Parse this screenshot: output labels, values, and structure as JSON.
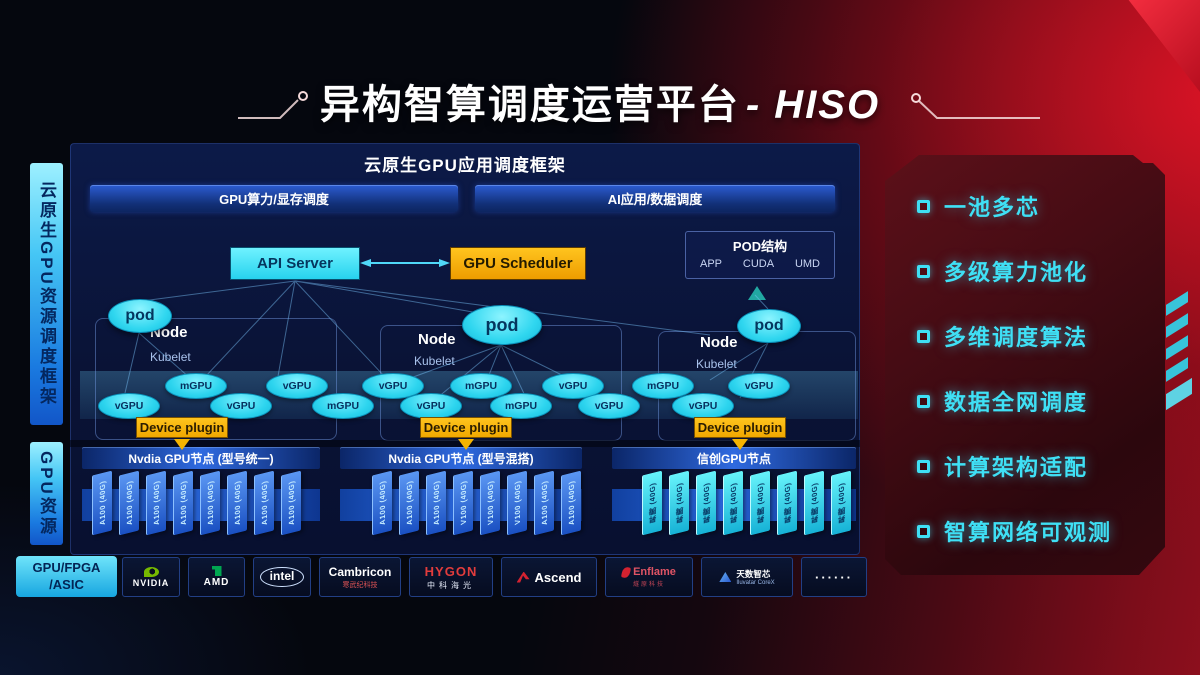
{
  "title": {
    "main": "异构智算调度运营平台",
    "suffix": "- HISO"
  },
  "sidebar": {
    "scheduling_frame": "云原生GPU资源调度框架",
    "gpu_resource": "GPU资源",
    "hardware_line1": "GPU/FPGA",
    "hardware_line2": "/ASIC"
  },
  "main": {
    "header": "云原生GPU应用调度框架",
    "bars": [
      {
        "label": "GPU算力/显存调度"
      },
      {
        "label": "AI应用/数据调度"
      }
    ],
    "api_server": "API Server",
    "gpu_scheduler": "GPU Scheduler",
    "pod_structure": {
      "title": "POD结构",
      "layers": [
        "APP",
        "CUDA",
        "UMD"
      ]
    },
    "pod_label": "pod",
    "clusters": [
      {
        "node": "Node",
        "agent": "Kubelet",
        "plugin": "Device plugin"
      },
      {
        "node": "Node",
        "agent": "Kubelet",
        "plugin": "Device plugin"
      },
      {
        "node": "Node",
        "agent": "Kubelet",
        "plugin": "Device plugin"
      }
    ],
    "gpu_units": [
      "vGPU",
      "mGPU",
      "vGPU",
      "vGPU",
      "mGPU",
      "vGPU",
      "vGPU",
      "mGPU",
      "mGPU",
      "vGPU",
      "vGPU",
      "mGPU",
      "vGPU",
      "vGPU"
    ],
    "node_groups": [
      {
        "label": "Nvdia GPU节点 (型号统一)",
        "style": "blue",
        "cards": [
          "A100 (40G)",
          "A100 (40G)",
          "A100 (40G)",
          "A100 (40G)",
          "A100 (40G)",
          "A100 (40G)",
          "A100 (40G)",
          "A100 (40G)"
        ]
      },
      {
        "label": "Nvdia GPU节点 (型号混搭)",
        "style": "blue",
        "cards": [
          "A100 (40G)",
          "A100 (40G)",
          "A100 (40G)",
          "V100 (40G)",
          "V100 (40G)",
          "V100 (40G)",
          "A100 (40G)",
          "A100 (40G)"
        ]
      },
      {
        "label": "信创GPU节点",
        "style": "cyan",
        "cards": [
          "昇腾 (40G)",
          "昇腾 (40G)",
          "昇腾 (40G)",
          "昇腾 (40G)",
          "昇腾 (40G)",
          "昇腾 (40G)",
          "昇腾 (40G)",
          "昇腾 (40G)"
        ]
      }
    ]
  },
  "vendors": [
    {
      "id": "nvidia",
      "icon": "nvidia-eye-icon",
      "main": "NVIDIA"
    },
    {
      "id": "amd",
      "icon": "amd-arrow-icon",
      "main": "AMD"
    },
    {
      "id": "intel",
      "main": "intel"
    },
    {
      "id": "cambricon",
      "main": "Cambricon",
      "sub": "寒武纪科技"
    },
    {
      "id": "hygon",
      "main": "HYGON",
      "sub": "中科海光"
    },
    {
      "id": "ascend",
      "icon": "ascend-triangle-icon",
      "main": "Ascend"
    },
    {
      "id": "enflame",
      "icon": "enflame-flame-icon",
      "main": "Enflame",
      "sub": "燧原科技"
    },
    {
      "id": "iluvatar",
      "icon": "iluvatar-triangle-icon",
      "main": "天数智芯",
      "sub": "Iluvatar CoreX"
    },
    {
      "id": "more",
      "main": "······"
    }
  ],
  "features": {
    "items": [
      "一池多芯",
      "多级算力池化",
      "多维调度算法",
      "数据全网调度",
      "计算架构适配",
      "智算网络可观测"
    ]
  },
  "colors": {
    "accent_cyan": "#3fe0f5",
    "accent_yellow": "#f5b400",
    "accent_red": "#d91527",
    "panel_navy": "#0b1742"
  }
}
